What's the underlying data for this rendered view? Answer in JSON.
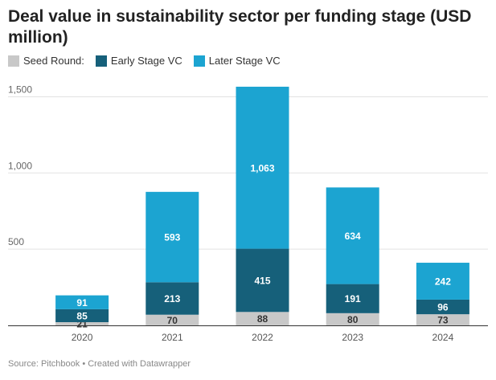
{
  "chart_data": {
    "type": "bar",
    "stacked": true,
    "title": "Deal value in sustainability sector per funding stage (USD million)",
    "xlabel": "",
    "ylabel": "",
    "categories": [
      "2020",
      "2021",
      "2022",
      "2023",
      "2024"
    ],
    "series": [
      {
        "name": "Seed Round:",
        "color": "#c8c8c8",
        "label_color": "#333333",
        "values": [
          21,
          70,
          88,
          80,
          73
        ]
      },
      {
        "name": "Early Stage VC",
        "color": "#16607a",
        "label_color": "#ffffff",
        "values": [
          85,
          213,
          415,
          191,
          96
        ]
      },
      {
        "name": "Later Stage VC",
        "color": "#1ca4d1",
        "label_color": "#ffffff",
        "values": [
          91,
          593,
          1063,
          634,
          242
        ]
      }
    ],
    "ylim": [
      0,
      1650
    ],
    "yticks": [
      500,
      1000,
      1500
    ],
    "ytick_labels": [
      "500",
      "1,000",
      "1,500"
    ],
    "grid": true,
    "legend_position": "top-left",
    "source": "Source: Pitchbook • Created with Datawrapper"
  }
}
